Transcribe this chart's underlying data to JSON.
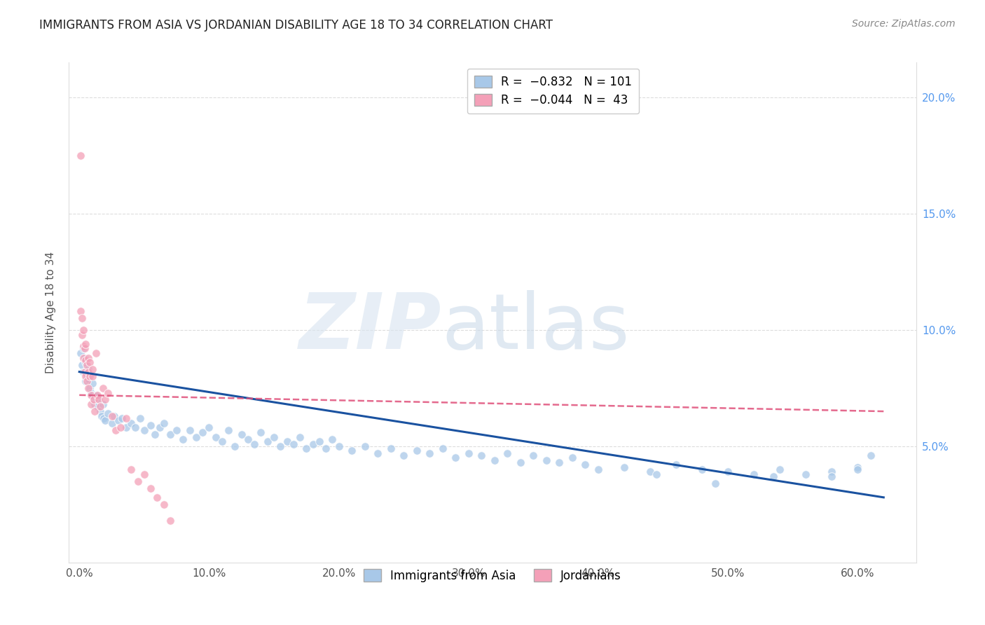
{
  "title": "IMMIGRANTS FROM ASIA VS JORDANIAN DISABILITY AGE 18 TO 34 CORRELATION CHART",
  "source": "Source: ZipAtlas.com",
  "xlabel_ticks": [
    "0.0%",
    "10.0%",
    "20.0%",
    "30.0%",
    "40.0%",
    "50.0%",
    "60.0%"
  ],
  "xlabel_vals": [
    0.0,
    0.1,
    0.2,
    0.3,
    0.4,
    0.5,
    0.6
  ],
  "ylabel_right_ticks": [
    "5.0%",
    "10.0%",
    "15.0%",
    "20.0%"
  ],
  "ylabel_right_vals": [
    0.05,
    0.1,
    0.15,
    0.2
  ],
  "ylabel_label": "Disability Age 18 to 34",
  "blue_color": "#a8c8e8",
  "pink_color": "#f4a0b8",
  "blue_line_color": "#1a52a0",
  "pink_line_color": "#e0507a",
  "pink_line_style": "--",
  "grid_color": "#dddddd",
  "title_color": "#222222",
  "right_tick_color": "#5599ee",
  "source_color": "#888888",
  "blue_scatter_x": [
    0.001,
    0.002,
    0.003,
    0.003,
    0.004,
    0.005,
    0.005,
    0.006,
    0.007,
    0.007,
    0.008,
    0.009,
    0.01,
    0.01,
    0.011,
    0.012,
    0.013,
    0.014,
    0.015,
    0.016,
    0.017,
    0.018,
    0.019,
    0.02,
    0.022,
    0.025,
    0.027,
    0.03,
    0.033,
    0.036,
    0.04,
    0.043,
    0.047,
    0.05,
    0.055,
    0.058,
    0.062,
    0.065,
    0.07,
    0.075,
    0.08,
    0.085,
    0.09,
    0.095,
    0.1,
    0.105,
    0.11,
    0.115,
    0.12,
    0.125,
    0.13,
    0.135,
    0.14,
    0.145,
    0.15,
    0.155,
    0.16,
    0.165,
    0.17,
    0.175,
    0.18,
    0.185,
    0.19,
    0.195,
    0.2,
    0.21,
    0.22,
    0.23,
    0.24,
    0.25,
    0.26,
    0.27,
    0.28,
    0.29,
    0.3,
    0.31,
    0.32,
    0.33,
    0.34,
    0.35,
    0.36,
    0.37,
    0.38,
    0.39,
    0.4,
    0.42,
    0.44,
    0.46,
    0.48,
    0.5,
    0.52,
    0.54,
    0.56,
    0.58,
    0.6,
    0.61,
    0.535,
    0.49,
    0.445,
    0.58,
    0.6
  ],
  "blue_scatter_y": [
    0.09,
    0.085,
    0.092,
    0.082,
    0.088,
    0.078,
    0.086,
    0.08,
    0.083,
    0.079,
    0.075,
    0.073,
    0.077,
    0.072,
    0.07,
    0.068,
    0.072,
    0.067,
    0.07,
    0.065,
    0.063,
    0.068,
    0.062,
    0.061,
    0.064,
    0.06,
    0.063,
    0.061,
    0.062,
    0.058,
    0.06,
    0.058,
    0.062,
    0.057,
    0.059,
    0.055,
    0.058,
    0.06,
    0.055,
    0.057,
    0.053,
    0.057,
    0.054,
    0.056,
    0.058,
    0.054,
    0.052,
    0.057,
    0.05,
    0.055,
    0.053,
    0.051,
    0.056,
    0.052,
    0.054,
    0.05,
    0.052,
    0.051,
    0.054,
    0.049,
    0.051,
    0.052,
    0.049,
    0.053,
    0.05,
    0.048,
    0.05,
    0.047,
    0.049,
    0.046,
    0.048,
    0.047,
    0.049,
    0.045,
    0.047,
    0.046,
    0.044,
    0.047,
    0.043,
    0.046,
    0.044,
    0.043,
    0.045,
    0.042,
    0.04,
    0.041,
    0.039,
    0.042,
    0.04,
    0.039,
    0.038,
    0.04,
    0.038,
    0.039,
    0.041,
    0.046,
    0.037,
    0.034,
    0.038,
    0.037,
    0.04
  ],
  "pink_scatter_x": [
    0.001,
    0.001,
    0.002,
    0.002,
    0.003,
    0.003,
    0.003,
    0.004,
    0.004,
    0.005,
    0.005,
    0.005,
    0.006,
    0.006,
    0.007,
    0.007,
    0.007,
    0.008,
    0.008,
    0.009,
    0.009,
    0.01,
    0.01,
    0.011,
    0.012,
    0.013,
    0.014,
    0.015,
    0.016,
    0.018,
    0.02,
    0.022,
    0.025,
    0.028,
    0.032,
    0.036,
    0.04,
    0.045,
    0.05,
    0.055,
    0.06,
    0.065,
    0.07
  ],
  "pink_scatter_y": [
    0.175,
    0.108,
    0.105,
    0.098,
    0.093,
    0.1,
    0.088,
    0.092,
    0.082,
    0.087,
    0.094,
    0.08,
    0.085,
    0.078,
    0.088,
    0.082,
    0.075,
    0.08,
    0.086,
    0.072,
    0.068,
    0.08,
    0.083,
    0.07,
    0.065,
    0.09,
    0.072,
    0.07,
    0.067,
    0.075,
    0.07,
    0.073,
    0.063,
    0.057,
    0.058,
    0.062,
    0.04,
    0.035,
    0.038,
    0.032,
    0.028,
    0.025,
    0.018
  ],
  "blue_line_x": [
    0.0,
    0.62
  ],
  "blue_line_y": [
    0.082,
    0.028
  ],
  "pink_line_x": [
    0.0,
    0.62
  ],
  "pink_line_y": [
    0.072,
    0.065
  ],
  "xlim": [
    -0.008,
    0.645
  ],
  "ylim": [
    0.0,
    0.215
  ],
  "ytop_line": 0.21
}
